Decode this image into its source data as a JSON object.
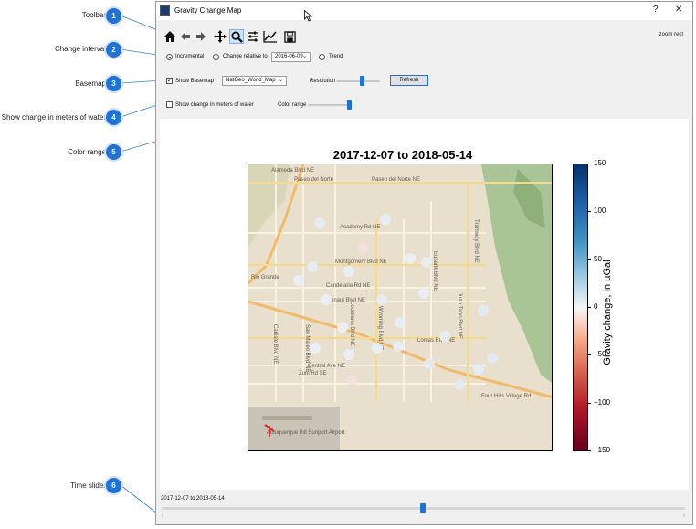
{
  "callouts": [
    {
      "num": "1",
      "label": "Toolbar"
    },
    {
      "num": "2",
      "label": "Change interval"
    },
    {
      "num": "3",
      "label": "Basemap"
    },
    {
      "num": "4",
      "label": "Show change in meters of water"
    },
    {
      "num": "5",
      "label": "Color range"
    },
    {
      "num": "6",
      "label": "Time slider"
    }
  ],
  "window": {
    "title": "Gravity Change Map",
    "help_glyph": "?",
    "close_glyph": "✕"
  },
  "toolbar": {
    "icons": [
      "home-icon",
      "back-arrow-icon",
      "forward-arrow-icon",
      "pan-icon",
      "zoom-icon",
      "configure-subplots-icon",
      "edit-axis-icon",
      "save-icon"
    ],
    "mode_text": "zoom rect"
  },
  "interval": {
    "incremental_label": "Incremental",
    "relative_label": "Change relative to",
    "relative_date": "2016-06-09",
    "trend_label": "Trend",
    "selected": "incremental"
  },
  "basemap": {
    "show_label": "Show Basemap",
    "checked": true,
    "selected_map": "NatGeo_World_Map",
    "resolution_label": "Resolution",
    "resolution_level": 0.55,
    "refresh_label": "Refresh"
  },
  "water": {
    "label": "Show change in meters of water",
    "checked": false
  },
  "color_range": {
    "label": "Color range",
    "level": 0.85
  },
  "plot": {
    "title": "2017-12-07 to 2018-05-14",
    "colorbar_label": "Gravity change, in µGal",
    "colorbar_ticks": [
      "150",
      "100",
      "50",
      "0",
      "−50",
      "−100",
      "−150"
    ],
    "colors": {
      "max": "#08306b",
      "zero": "#f7f7f7",
      "min": "#67001f"
    },
    "map_labels": [
      "Alameda Blvd NE",
      "Paseo del Norte",
      "Paseo del Norte NE",
      "Academy Rd NE",
      "Montgomery Blvd NE",
      "Candelaria Rd NE",
      "Menaul Blvd NE",
      "Lomas Blvd NE",
      "Central Ave NE",
      "Zuni Rd SE",
      "Tramway Blvd NE",
      "Eubank Blvd NE",
      "Juan Tabo Blvd NE",
      "Wyoming Blvd NE",
      "Louisiana Blvd NE",
      "San Mateo Blvd NE",
      "Carlisle Blvd NE",
      "Rio Grande",
      "Albuquerque Intl Sunport Airport",
      "Four Hills Village Rd"
    ]
  },
  "time_slider": {
    "label": "2017-12-07 to 2018-05-14",
    "position": 0.5,
    "left_arrow": "‹",
    "right_arrow": "›"
  }
}
